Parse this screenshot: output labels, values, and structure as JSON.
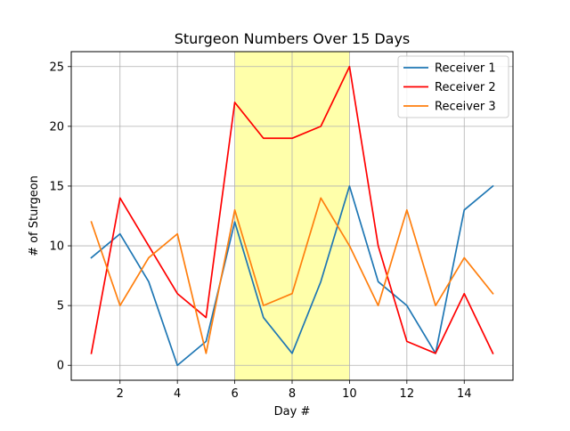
{
  "chart_data": {
    "type": "line",
    "title": "Sturgeon Numbers Over 15 Days",
    "xlabel": "Day #",
    "ylabel": "# of Sturgeon",
    "x": [
      1,
      2,
      3,
      4,
      5,
      6,
      7,
      8,
      9,
      10,
      11,
      12,
      13,
      14,
      15
    ],
    "xlim": [
      0.3,
      15.7
    ],
    "ylim": [
      -1.25,
      26.25
    ],
    "xticks": [
      2,
      4,
      6,
      8,
      10,
      12,
      14
    ],
    "yticks": [
      0,
      5,
      10,
      15,
      20,
      25
    ],
    "grid": true,
    "legend_position": "top-right",
    "highlight_span": {
      "x_start": 6,
      "x_end": 10,
      "color": "#ffffaa"
    },
    "series": [
      {
        "name": "Receiver 1",
        "color": "#1f77b4",
        "values": [
          9,
          11,
          7,
          0,
          2,
          12,
          4,
          1,
          7,
          15,
          7,
          5,
          1,
          13,
          15
        ]
      },
      {
        "name": "Receiver 2",
        "color": "#ff0000",
        "values": [
          1,
          14,
          10,
          6,
          4,
          22,
          19,
          19,
          20,
          25,
          10,
          2,
          1,
          6,
          1
        ]
      },
      {
        "name": "Receiver 3",
        "color": "#ff7f0e",
        "values": [
          12,
          5,
          9,
          11,
          1,
          13,
          5,
          6,
          14,
          10,
          5,
          13,
          5,
          9,
          6
        ]
      }
    ]
  }
}
